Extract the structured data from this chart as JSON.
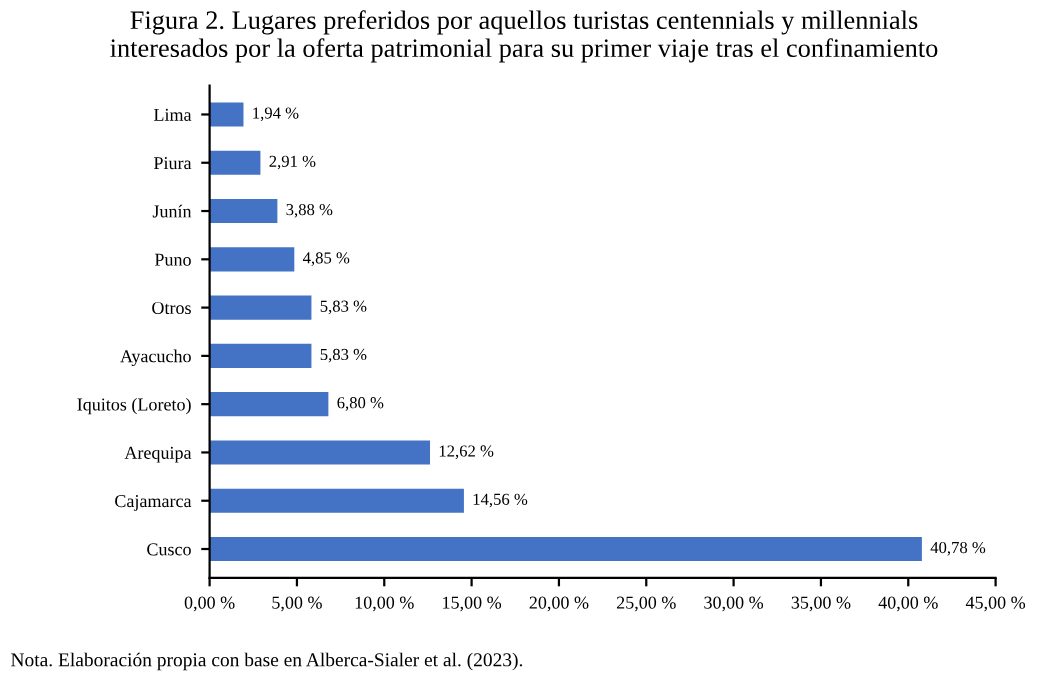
{
  "chart_data": {
    "type": "bar",
    "orientation": "horizontal",
    "title": "Figura 2. Lugares preferidos por aquellos turistas centennials y millennials\ninteresados por la oferta patrimonial para su primer viaje tras el confinamiento",
    "categories": [
      "Lima",
      "Piura",
      "Junín",
      "Puno",
      "Otros",
      "Ayacucho",
      "Iquitos (Loreto)",
      "Arequipa",
      "Cajamarca",
      "Cusco"
    ],
    "values": [
      1.94,
      2.91,
      3.88,
      4.85,
      5.83,
      5.83,
      6.8,
      12.62,
      14.56,
      40.78
    ],
    "value_labels": [
      "1,94 %",
      "2,91 %",
      "3,88 %",
      "4,85 %",
      "5,83 %",
      "5,83 %",
      "6,80 %",
      "12,62 %",
      "14,56 %",
      "40,78 %"
    ],
    "color": "#4472c4",
    "xlim": [
      0,
      45
    ],
    "xticks": [
      {
        "value": 0,
        "label": "0,00 %"
      },
      {
        "value": 5,
        "label": "5,00 %"
      },
      {
        "value": 10,
        "label": "10,00 %"
      },
      {
        "value": 15,
        "label": "15,00 %"
      },
      {
        "value": 20,
        "label": "20,00 %"
      },
      {
        "value": 25,
        "label": "25,00 %"
      },
      {
        "value": 30,
        "label": "30,00 %"
      },
      {
        "value": 35,
        "label": "35,00 %"
      },
      {
        "value": 40,
        "label": "40,00 %"
      },
      {
        "value": 45,
        "label": "45,00 %"
      }
    ],
    "annotations": [
      "Nota. Elaboración propia con base en Alberca-Sialer et al. (2023)."
    ],
    "grid": false,
    "legend": false
  }
}
